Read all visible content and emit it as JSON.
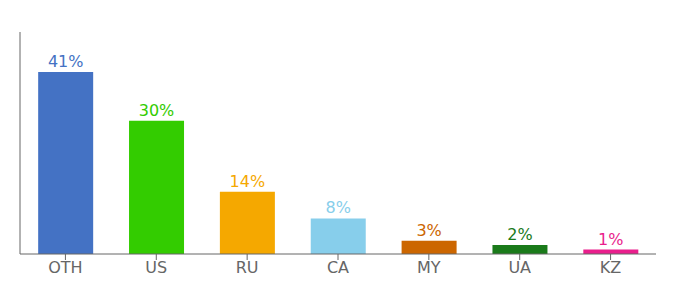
{
  "chart_data": {
    "type": "bar",
    "categories": [
      "OTH",
      "US",
      "RU",
      "CA",
      "MY",
      "UA",
      "KZ"
    ],
    "values": [
      41,
      30,
      14,
      8,
      3,
      2,
      1
    ],
    "value_labels": [
      "41%",
      "30%",
      "14%",
      "8%",
      "3%",
      "2%",
      "1%"
    ],
    "colors": [
      "#4472c4",
      "#33cc00",
      "#f5a800",
      "#87ceeb",
      "#cc6600",
      "#1a7a1a",
      "#e91e8c"
    ],
    "ylim": [
      0,
      50
    ],
    "data_labels": true,
    "tick_labels": "x",
    "grid": false
  }
}
